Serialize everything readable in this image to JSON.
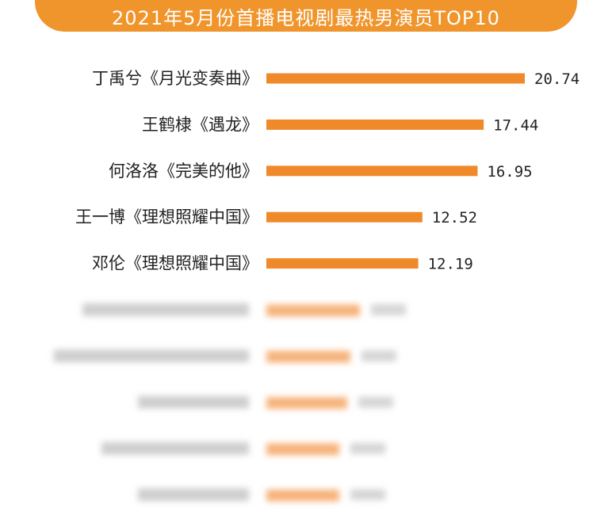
{
  "title": "2021年5月份首播电视剧最热男演员TOP10",
  "colors": {
    "banner": "#f0952c",
    "bar": "#f0892a",
    "bar_blurred": "#f6b27a",
    "text": "#222222"
  },
  "chart_data": {
    "type": "bar",
    "orientation": "horizontal",
    "title": "2021年5月份首播电视剧最热男演员TOP10",
    "categories": [
      "丁禹兮《月光变奏曲》",
      "王鹤棣《遇龙》",
      "何洛洛《完美的他》",
      "王一博《理想照耀中国》",
      "邓伦《理想照耀中国》"
    ],
    "values": [
      20.74,
      17.44,
      16.95,
      12.52,
      12.19
    ],
    "value_labels": [
      "20.74",
      "17.44",
      "16.95",
      "12.52",
      "12.19"
    ],
    "blurred_rows": 5,
    "grid": false,
    "legend": "none"
  }
}
